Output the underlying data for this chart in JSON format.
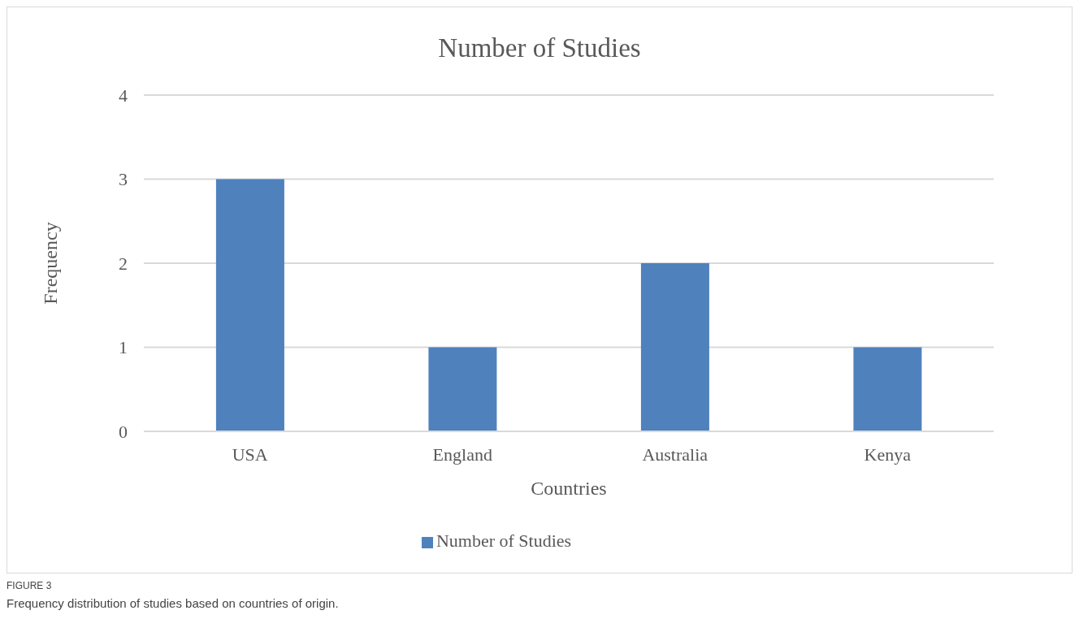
{
  "chart_data": {
    "type": "bar",
    "title": "Number of Studies",
    "xlabel": "Countries",
    "ylabel": "Frequency",
    "categories": [
      "USA",
      "England",
      "Australia",
      "Kenya"
    ],
    "series": [
      {
        "name": "Number of Studies",
        "color": "#4f81bd",
        "values": [
          3,
          1,
          2,
          1
        ]
      }
    ],
    "ylim": [
      0,
      4
    ],
    "yticks": [
      0,
      1,
      2,
      3,
      4
    ],
    "grid": "y",
    "legend": "bottom",
    "annotations": [
      "FIGURE 3",
      "Frequency distribution of studies based on countries of origin."
    ]
  }
}
